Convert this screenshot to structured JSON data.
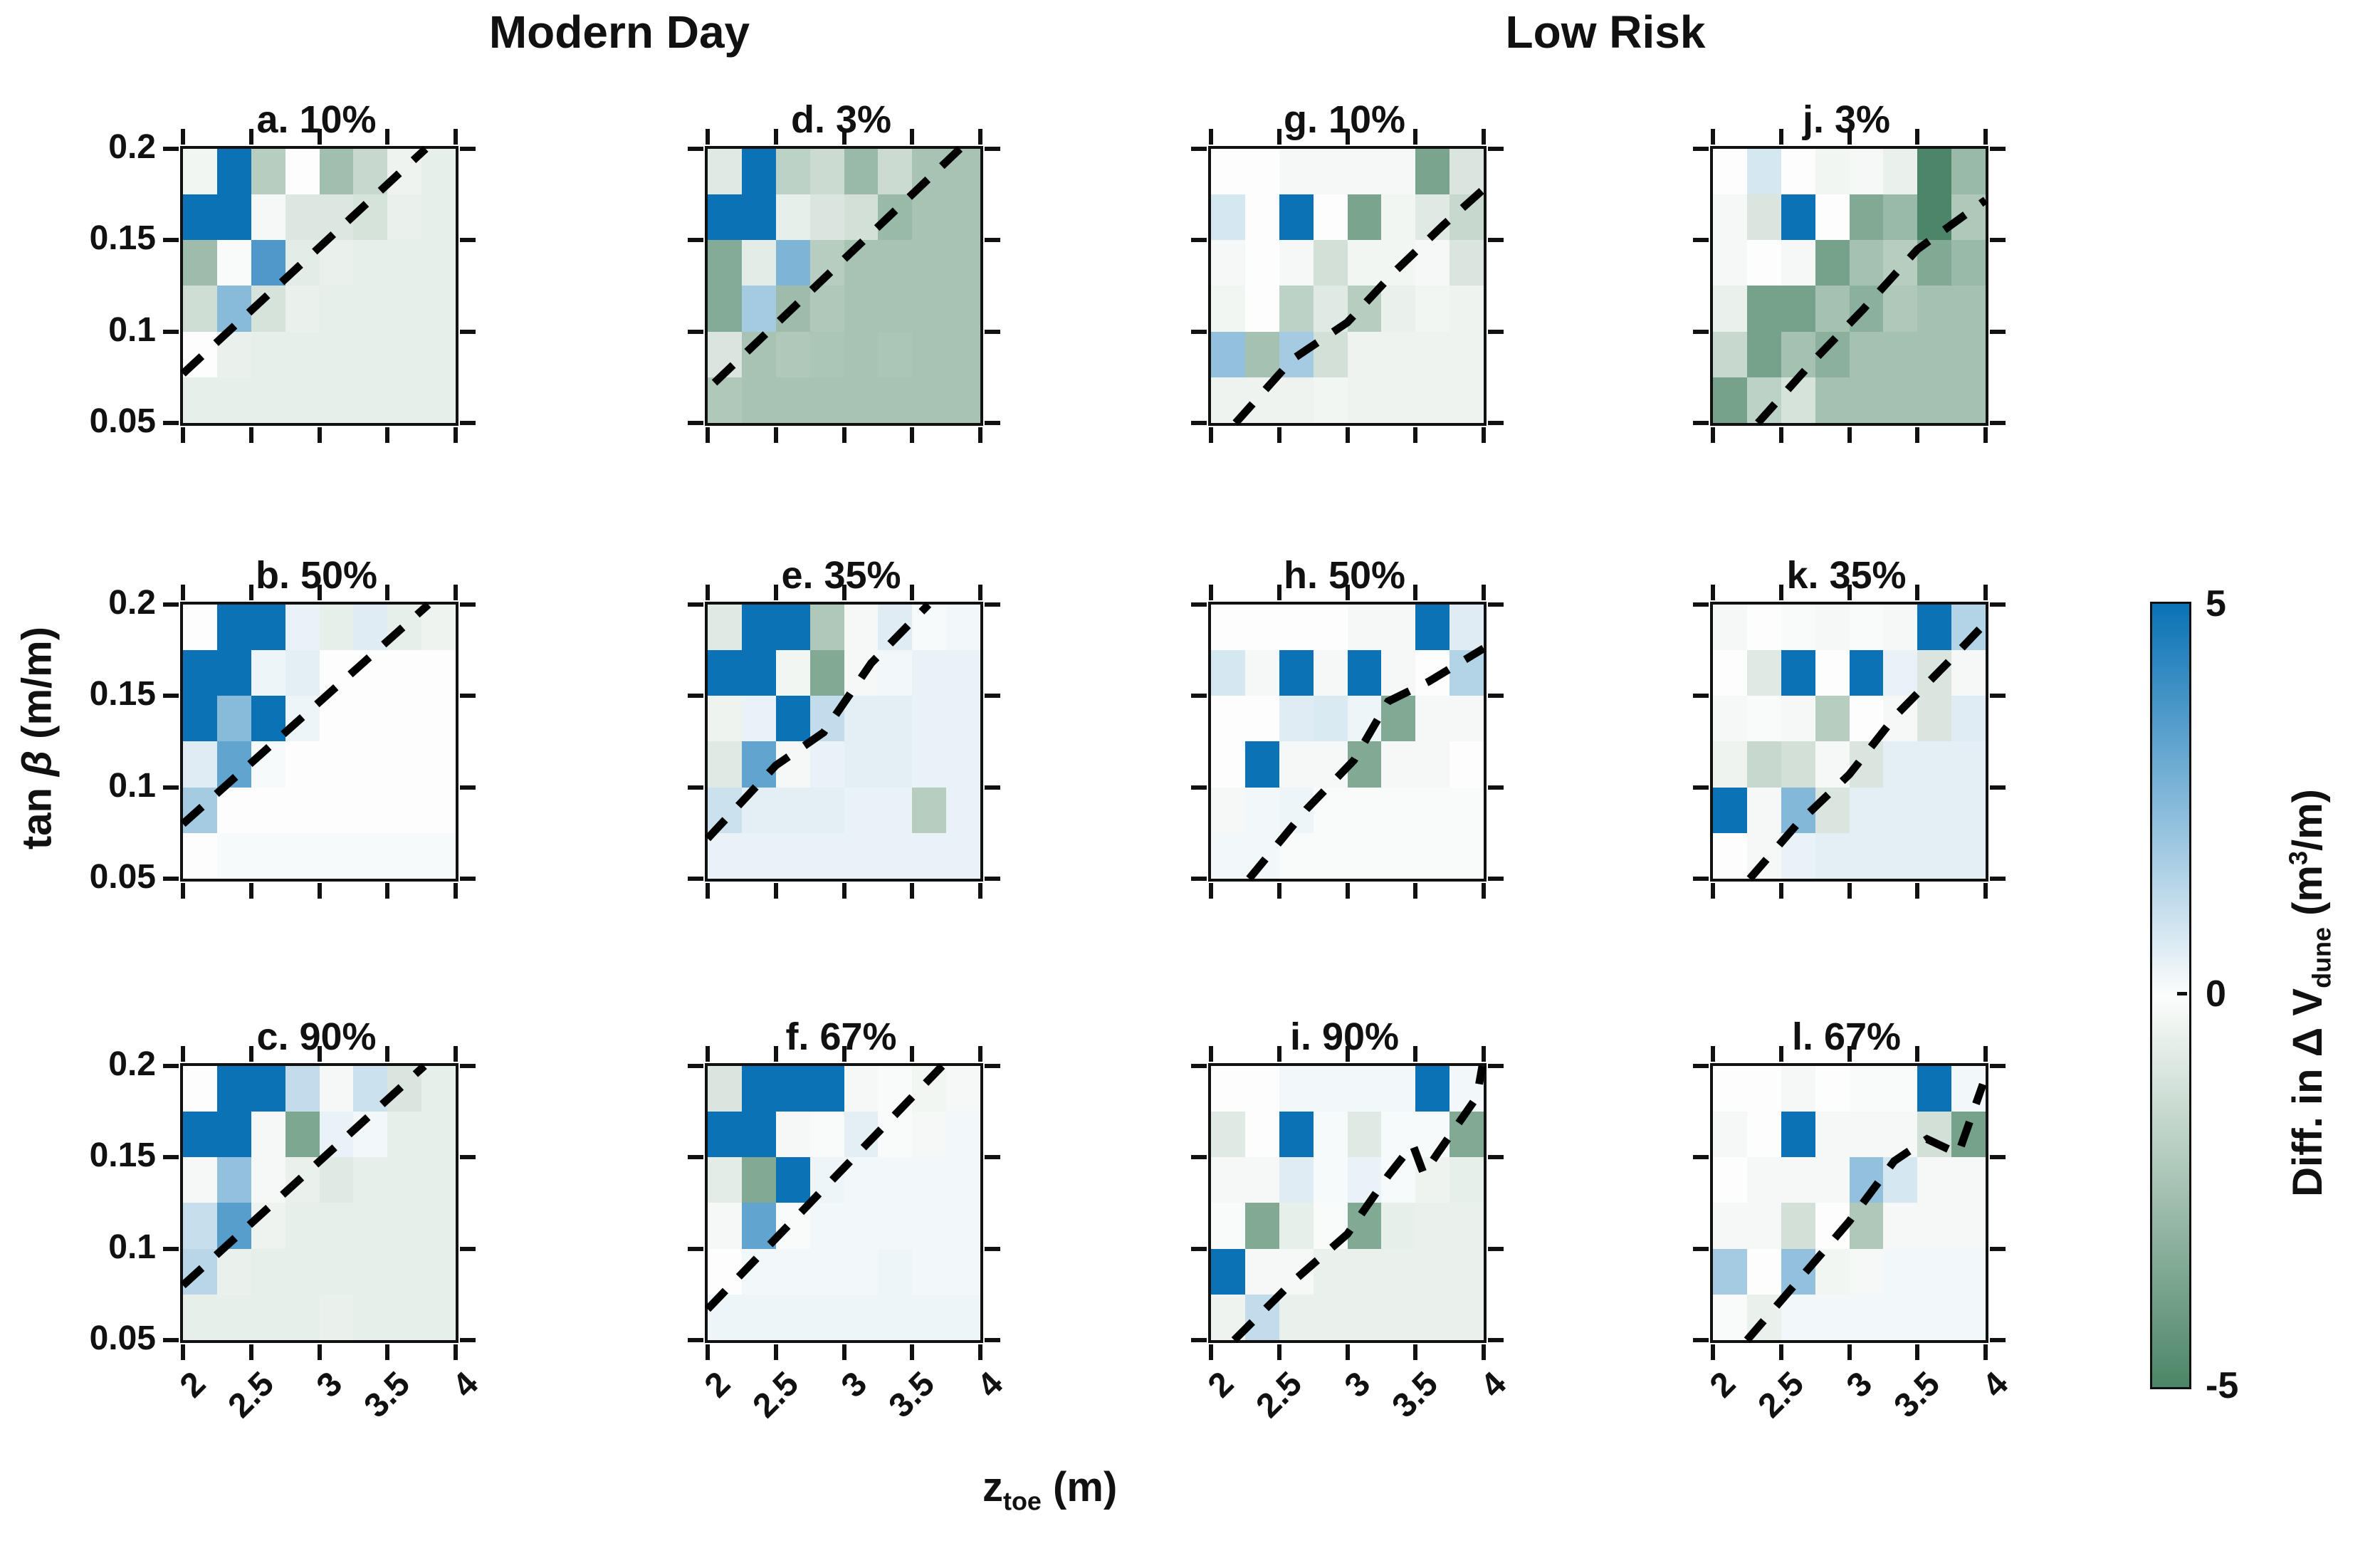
{
  "chart_data": {
    "type": "heatmap",
    "group_titles": [
      "Modern Day",
      "Low Risk"
    ],
    "x_axis": {
      "label": "z_toe (m)",
      "ticks": [
        "2",
        "2.5",
        "3",
        "3.5",
        "4"
      ],
      "range": [
        2,
        4
      ],
      "n_cells": 8
    },
    "y_axis": {
      "label": "tan beta (m/m)",
      "ticks": [
        "0.2",
        "0.15",
        "0.1",
        "0.05"
      ],
      "range": [
        0.05,
        0.2
      ],
      "n_cells": 6
    },
    "colorbar": {
      "label": "Diff. in Delta V_dune (m^3/m)",
      "ticks": [
        "5",
        "0",
        "-5"
      ],
      "range": [
        -5,
        5
      ],
      "color_positive": "#0a72b5",
      "color_zero": "#fcfdfc",
      "color_negative": "#4c8567"
    },
    "grid": {
      "rows_tanbeta_top_to_bottom": [
        0.2,
        0.175,
        0.15,
        0.125,
        0.1,
        0.075
      ],
      "cols_ztoe_left_to_right": [
        2.0,
        2.25,
        2.5,
        2.75,
        3.0,
        3.25,
        3.5,
        3.75
      ]
    },
    "subplots": [
      {
        "id": "a",
        "title": "a. 10%",
        "group": "Modern Day",
        "row": 0,
        "col": 0,
        "values": [
          [
            -0.3,
            5,
            -2.0,
            0,
            -2.6,
            -1.5,
            -0.4,
            -0.6
          ],
          [
            5,
            5,
            -0.2,
            -0.9,
            -0.9,
            -1.1,
            -0.5,
            -0.6
          ],
          [
            -2.7,
            -0.1,
            3.6,
            -0.7,
            -0.5,
            -0.6,
            -0.6,
            -0.6
          ],
          [
            -1.3,
            2.4,
            -1.1,
            -0.5,
            -0.6,
            -0.6,
            -0.6,
            -0.6
          ],
          [
            0,
            -0.5,
            -0.6,
            -0.6,
            -0.6,
            -0.6,
            -0.6,
            -0.6
          ],
          [
            -0.6,
            -0.6,
            -0.6,
            -0.6,
            -0.6,
            -0.6,
            -0.6,
            -0.6
          ]
        ],
        "dash_line": [
          [
            2.0,
            0.077
          ],
          [
            3.78,
            0.2
          ]
        ]
      },
      {
        "id": "b",
        "title": "b. 50%",
        "group": "Modern Day",
        "row": 1,
        "col": 0,
        "values": [
          [
            0,
            5,
            5,
            0.4,
            -0.6,
            0.6,
            -0.6,
            -0.4
          ],
          [
            5,
            5,
            0.3,
            0.5,
            0,
            0,
            0,
            0
          ],
          [
            5,
            2.4,
            5,
            0.3,
            0,
            0,
            0,
            0
          ],
          [
            0.6,
            3.2,
            0.1,
            0,
            0,
            0,
            0,
            0
          ],
          [
            1.8,
            0,
            0,
            0,
            0,
            0,
            0,
            0
          ],
          [
            0,
            0.1,
            0.1,
            0.1,
            0.1,
            0.1,
            0.1,
            0.1
          ]
        ],
        "dash_line": [
          [
            2.0,
            0.08
          ],
          [
            3.8,
            0.2
          ]
        ]
      },
      {
        "id": "c",
        "title": "c. 90%",
        "group": "Modern Day",
        "row": 2,
        "col": 0,
        "values": [
          [
            0,
            5,
            5,
            1.2,
            -0.2,
            1.0,
            -1.0,
            -0.6
          ],
          [
            5,
            5,
            -0.2,
            -3.6,
            0.4,
            0.2,
            -0.6,
            -0.6
          ],
          [
            -0.2,
            2.2,
            -0.2,
            -0.5,
            -0.8,
            -0.6,
            -0.6,
            -0.6
          ],
          [
            1.1,
            3.4,
            -0.4,
            -0.6,
            -0.6,
            -0.6,
            -0.6,
            -0.6
          ],
          [
            1.4,
            -0.5,
            -0.6,
            -0.6,
            -0.6,
            -0.6,
            -0.6,
            -0.6
          ],
          [
            -0.6,
            -0.6,
            -0.6,
            -0.6,
            -0.5,
            -0.6,
            -0.6,
            -0.6
          ]
        ],
        "dash_line": [
          [
            2.0,
            0.08
          ],
          [
            3.77,
            0.2
          ]
        ]
      },
      {
        "id": "d",
        "title": "d. 3%",
        "group": "Modern Day",
        "row": 0,
        "col": 1,
        "values": [
          [
            -0.8,
            5,
            -1.8,
            -1.4,
            -2.8,
            -1.4,
            -2.4,
            -2.4
          ],
          [
            5,
            5,
            -0.6,
            -1.0,
            -1.2,
            -2.8,
            -2.4,
            -2.4
          ],
          [
            -3.4,
            -0.7,
            2.6,
            -2.0,
            -2.4,
            -2.4,
            -2.4,
            -2.4
          ],
          [
            -3.4,
            1.8,
            -2.7,
            -2.2,
            -2.4,
            -2.4,
            -2.4,
            -2.4
          ],
          [
            -1.0,
            -2.4,
            -2.2,
            -2.3,
            -2.4,
            -2.3,
            -2.4,
            -2.4
          ],
          [
            -2.2,
            -2.4,
            -2.4,
            -2.4,
            -2.4,
            -2.4,
            -2.4,
            -2.4
          ]
        ],
        "dash_line": [
          [
            2.05,
            0.072
          ],
          [
            3.85,
            0.2
          ]
        ]
      },
      {
        "id": "e",
        "title": "e. 35%",
        "group": "Modern Day",
        "row": 1,
        "col": 1,
        "values": [
          [
            -0.8,
            5,
            5,
            -2.2,
            -0.2,
            0.6,
            0.1,
            0.2
          ],
          [
            5,
            5,
            -0.3,
            -3.5,
            -0.2,
            0.2,
            0.4,
            0.4
          ],
          [
            -0.4,
            0.4,
            5,
            1.2,
            0.5,
            0.5,
            0.4,
            0.4
          ],
          [
            -0.8,
            3.2,
            -0.2,
            0.4,
            0.5,
            0.5,
            0.4,
            0.4
          ],
          [
            1.0,
            0.5,
            0.5,
            0.5,
            0.4,
            0.4,
            -2.0,
            0.4
          ],
          [
            0.4,
            0.4,
            0.4,
            0.4,
            0.4,
            0.4,
            0.4,
            0.4
          ]
        ],
        "dash_line": [
          [
            2.0,
            0.072
          ],
          [
            2.5,
            0.112
          ],
          [
            2.85,
            0.13
          ],
          [
            3.2,
            0.168
          ],
          [
            3.62,
            0.2
          ]
        ]
      },
      {
        "id": "f",
        "title": "f. 67%",
        "group": "Modern Day",
        "row": 2,
        "col": 1,
        "values": [
          [
            -1.0,
            5,
            5,
            5,
            -0.2,
            -0.1,
            -0.3,
            -0.2
          ],
          [
            5,
            5,
            -0.2,
            -0.1,
            0.5,
            -0.1,
            -0.2,
            0.2
          ],
          [
            -0.7,
            -3.5,
            5,
            0.3,
            0.2,
            0.2,
            0.2,
            0.2
          ],
          [
            -0.2,
            3.2,
            -0.1,
            0.2,
            0.2,
            0.2,
            0.2,
            0.2
          ],
          [
            0,
            0.2,
            0.2,
            0.2,
            0.2,
            0.3,
            0.2,
            0.2
          ],
          [
            0.3,
            0.3,
            0.3,
            0.3,
            0.3,
            0.3,
            0.3,
            0.3
          ]
        ],
        "dash_line": [
          [
            2.0,
            0.067
          ],
          [
            3.72,
            0.2
          ]
        ]
      },
      {
        "id": "g",
        "title": "g. 10%",
        "group": "Low Risk",
        "row": 0,
        "col": 2,
        "values": [
          [
            0,
            0,
            -0.2,
            -0.2,
            -0.2,
            -0.2,
            -3.7,
            -1.0
          ],
          [
            0.8,
            0,
            5,
            0,
            -3.7,
            -0.3,
            -0.8,
            -1.5
          ],
          [
            -0.2,
            0,
            -0.2,
            -1.2,
            -0.3,
            -0.3,
            -0.2,
            -1.0
          ],
          [
            -0.3,
            0,
            -1.8,
            -0.8,
            -2.0,
            -0.5,
            -0.3,
            -0.4
          ],
          [
            2.2,
            -2.5,
            1.8,
            -1.2,
            -0.4,
            -0.4,
            -0.4,
            -0.4
          ],
          [
            -0.4,
            -0.4,
            -0.4,
            -0.3,
            -0.4,
            -0.4,
            -0.4,
            -0.4
          ]
        ],
        "dash_line": [
          [
            2.18,
            0.05
          ],
          [
            2.6,
            0.085
          ],
          [
            3.0,
            0.105
          ],
          [
            3.35,
            0.133
          ],
          [
            3.7,
            0.158
          ],
          [
            4.0,
            0.178
          ]
        ]
      },
      {
        "id": "h",
        "title": "h. 50%",
        "group": "Low Risk",
        "row": 1,
        "col": 2,
        "values": [
          [
            0,
            0,
            0,
            0,
            -0.2,
            -0.2,
            5,
            0.6
          ],
          [
            0.8,
            -0.2,
            5,
            -0.2,
            5,
            -0.2,
            0,
            1.5
          ],
          [
            0,
            0,
            0.6,
            0.7,
            0.3,
            -3.5,
            -0.2,
            -0.2
          ],
          [
            0,
            5,
            -0.2,
            -0.2,
            -3.5,
            -0.2,
            -0.2,
            0
          ],
          [
            -0.2,
            0.2,
            0.3,
            -0.1,
            -0.1,
            -0.1,
            -0.1,
            -0.1
          ],
          [
            0.2,
            0.2,
            -0.1,
            -0.1,
            -0.1,
            -0.1,
            -0.1,
            -0.1
          ]
        ],
        "dash_line": [
          [
            2.28,
            0.05
          ],
          [
            2.7,
            0.088
          ],
          [
            3.05,
            0.115
          ],
          [
            3.3,
            0.147
          ],
          [
            3.6,
            0.158
          ],
          [
            4.0,
            0.176
          ]
        ]
      },
      {
        "id": "i",
        "title": "i. 90%",
        "group": "Low Risk",
        "row": 2,
        "col": 2,
        "values": [
          [
            0,
            0,
            0.2,
            0.2,
            0.2,
            0.2,
            5,
            0.2
          ],
          [
            -0.8,
            0,
            5,
            0.1,
            -0.8,
            0.1,
            0.1,
            -3.5
          ],
          [
            -0.2,
            -0.2,
            0.6,
            0.1,
            0.4,
            0.1,
            -0.4,
            -0.6
          ],
          [
            -0.1,
            -3.5,
            -0.6,
            -0.1,
            -3.5,
            -0.6,
            -0.5,
            -0.5
          ],
          [
            5,
            -0.2,
            -0.2,
            -0.5,
            -0.5,
            -0.5,
            -0.5,
            -0.5
          ],
          [
            -0.4,
            1.2,
            -0.5,
            -0.5,
            -0.5,
            -0.5,
            -0.5,
            -0.5
          ]
        ],
        "dash_line": [
          [
            2.17,
            0.05
          ],
          [
            2.6,
            0.082
          ],
          [
            3.0,
            0.108
          ],
          [
            3.3,
            0.14
          ],
          [
            3.48,
            0.157
          ],
          [
            3.56,
            0.141
          ],
          [
            3.66,
            0.152
          ],
          [
            3.95,
            0.183
          ],
          [
            3.99,
            0.2
          ]
        ]
      },
      {
        "id": "j",
        "title": "j. 3%",
        "group": "Low Risk",
        "row": 0,
        "col": 3,
        "values": [
          [
            0,
            0.8,
            0,
            -0.3,
            -0.2,
            -0.5,
            -5,
            -2.8
          ],
          [
            -0.2,
            -1.0,
            5,
            0,
            -3.5,
            -2.8,
            -5,
            -2.2
          ],
          [
            -0.2,
            0,
            -0.2,
            -3.8,
            -2.5,
            -2.0,
            -3.5,
            -2.8
          ],
          [
            -0.5,
            -3.8,
            -3.8,
            -2.5,
            -3.2,
            -2.2,
            -2.5,
            -2.5
          ],
          [
            -1.5,
            -3.8,
            -2.5,
            -3.2,
            -2.5,
            -2.5,
            -2.5,
            -2.5
          ],
          [
            -3.8,
            -1.8,
            -1.1,
            -2.5,
            -2.5,
            -2.5,
            -2.5,
            -2.5
          ]
        ],
        "dash_line": [
          [
            2.33,
            0.05
          ],
          [
            2.75,
            0.085
          ],
          [
            3.1,
            0.112
          ],
          [
            3.5,
            0.145
          ],
          [
            4.0,
            0.172
          ]
        ]
      },
      {
        "id": "k",
        "title": "k. 35%",
        "group": "Low Risk",
        "row": 1,
        "col": 3,
        "values": [
          [
            -0.2,
            0,
            -0.1,
            -0.2,
            -0.1,
            -0.2,
            5,
            1.5
          ],
          [
            0,
            -0.8,
            5,
            0,
            5,
            0.4,
            -1.0,
            -0.2
          ],
          [
            -0.2,
            -0.1,
            -0.2,
            -2.0,
            0,
            -0.2,
            -1.0,
            0.6
          ],
          [
            -0.4,
            -1.5,
            -1.2,
            -0.2,
            -1.0,
            0.5,
            0.5,
            0.5
          ],
          [
            5,
            -0.2,
            2.5,
            -1.0,
            0.5,
            0.5,
            0.5,
            0.5
          ],
          [
            0,
            -0.2,
            0.4,
            0.5,
            0.5,
            0.5,
            0.5,
            0.5
          ]
        ],
        "dash_line": [
          [
            2.27,
            0.05
          ],
          [
            2.62,
            0.08
          ],
          [
            3.0,
            0.107
          ],
          [
            3.35,
            0.14
          ],
          [
            3.72,
            0.168
          ],
          [
            4.0,
            0.19
          ]
        ]
      },
      {
        "id": "l",
        "title": "l. 67%",
        "group": "Low Risk",
        "row": 2,
        "col": 3,
        "values": [
          [
            0,
            0,
            -0.2,
            0,
            -0.1,
            -0.1,
            5,
            0.2
          ],
          [
            -0.2,
            0,
            5,
            -0.2,
            -0.2,
            -0.2,
            -1.2,
            -3.8
          ],
          [
            0,
            -0.2,
            -0.2,
            -0.2,
            2.2,
            0.8,
            -0.2,
            -0.2
          ],
          [
            -0.2,
            -0.2,
            -1.2,
            0,
            -2.2,
            -0.2,
            -0.2,
            -0.2
          ],
          [
            1.8,
            0,
            2.2,
            -0.3,
            -0.2,
            0.2,
            0.2,
            0.2
          ],
          [
            -0.1,
            -0.5,
            0.2,
            0.2,
            0.2,
            0.2,
            0.2,
            0.2
          ]
        ],
        "dash_line": [
          [
            2.25,
            0.05
          ],
          [
            2.62,
            0.082
          ],
          [
            3.0,
            0.115
          ],
          [
            3.33,
            0.148
          ],
          [
            3.57,
            0.16
          ],
          [
            3.8,
            0.152
          ],
          [
            3.98,
            0.19
          ]
        ]
      }
    ]
  },
  "labels": {
    "header_left": "Modern Day",
    "header_right": "Low Risk",
    "ylabel_pre": "tan ",
    "ylabel_beta": "β",
    "ylabel_post": " (m/m)",
    "xlabel_main": "z",
    "xlabel_sub": "toe",
    "xlabel_post": " (m)",
    "cb_tick_top": "5",
    "cb_tick_mid": "0",
    "cb_tick_bot": "-5",
    "cb_pre": "Diff. in Δ V",
    "cb_sub": "dune",
    "cb_mid": " (m",
    "cb_sup": "3",
    "cb_post": "/m)"
  }
}
